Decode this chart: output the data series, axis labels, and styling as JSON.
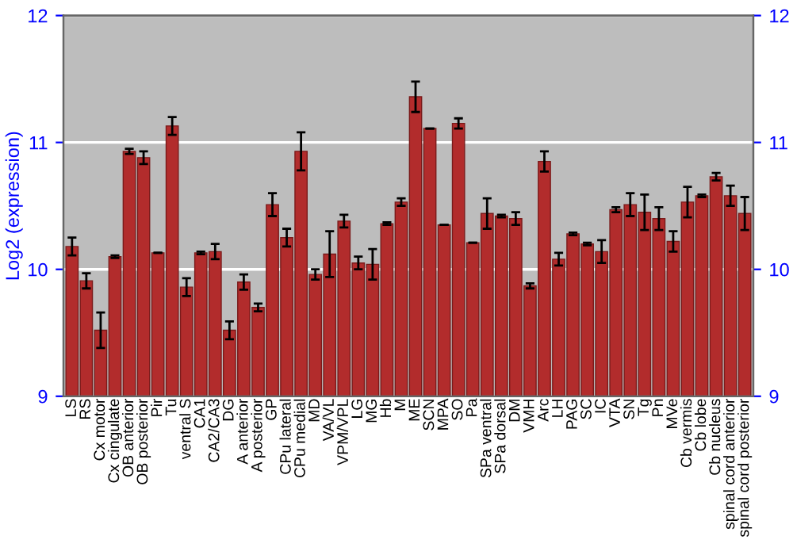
{
  "chart_data": {
    "type": "bar",
    "ylabel": "Log2 (expression)",
    "categories": [
      "LS",
      "RS",
      "Cx motor",
      "Cx cingulate",
      "OB anterior",
      "OB posterior",
      "Pir",
      "Tu",
      "ventral S",
      "CA1",
      "CA2/CA3",
      "DG",
      "A anterior",
      "A posterior",
      "GP",
      "CPu lateral",
      "CPu medial",
      "MD",
      "VA/VL",
      "VPM/VPL",
      "LG",
      "MG",
      "Hb",
      "M",
      "ME",
      "SCN",
      "MPA",
      "SO",
      "Pa",
      "SPa ventral",
      "SPa dorsal",
      "DM",
      "VMH",
      "Arc",
      "LH",
      "PAG",
      "SC",
      "IC",
      "VTA",
      "SN",
      "Tg",
      "Pn",
      "MVe",
      "Cb vermis",
      "Cb lobe",
      "Cb nucleus",
      "spinal cord anterior",
      "spinal cord posterior"
    ],
    "values": [
      10.18,
      9.91,
      9.52,
      10.1,
      10.93,
      10.88,
      10.13,
      11.13,
      9.86,
      10.13,
      10.14,
      9.52,
      9.9,
      9.7,
      10.51,
      10.25,
      10.93,
      9.96,
      10.12,
      10.38,
      10.05,
      10.04,
      10.36,
      10.53,
      11.36,
      11.11,
      10.35,
      11.15,
      10.21,
      10.44,
      10.42,
      10.4,
      9.87,
      10.85,
      10.08,
      10.28,
      10.2,
      10.14,
      10.47,
      10.51,
      10.45,
      10.4,
      10.22,
      10.53,
      10.58,
      10.73,
      10.58,
      10.44
    ],
    "errors": [
      0.07,
      0.06,
      0.14,
      0.01,
      0.02,
      0.05,
      null,
      0.07,
      0.07,
      0.01,
      0.06,
      0.07,
      0.06,
      0.03,
      0.09,
      0.07,
      0.15,
      0.04,
      0.18,
      0.05,
      0.05,
      0.12,
      0.01,
      0.03,
      0.12,
      null,
      null,
      0.04,
      null,
      0.12,
      0.01,
      0.05,
      0.02,
      0.08,
      0.05,
      0.01,
      0.01,
      0.09,
      0.02,
      0.09,
      0.14,
      0.09,
      0.08,
      0.12,
      0.01,
      0.03,
      0.08,
      0.13
    ],
    "color": "#b22c2c",
    "ylim": [
      9,
      12
    ],
    "yticks": [
      9,
      10,
      11,
      12
    ],
    "y2lim": [
      9,
      12
    ],
    "y2ticks": [
      9,
      10,
      11,
      12
    ],
    "grid": "y"
  }
}
